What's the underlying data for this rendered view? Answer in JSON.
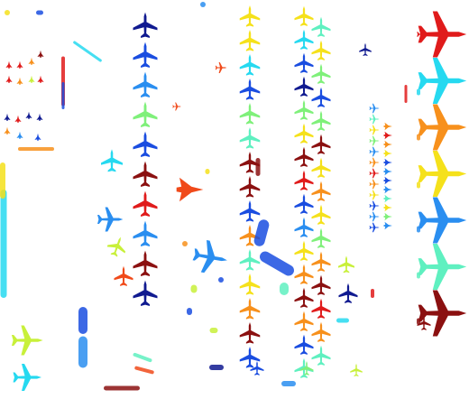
{
  "scene": {
    "kind": "segmentation-mask-visualization",
    "background": "#ffffff",
    "object_icon": "airplane-icon",
    "palette": {
      "dark_red": "#8b1010",
      "red": "#e01b1b",
      "orange_red": "#f04a1a",
      "orange": "#f7901c",
      "yellow": "#f5e11b",
      "yellow_green": "#c8f03a",
      "green": "#7ff07a",
      "mint": "#5ff0c0",
      "cyan": "#26d9f0",
      "sky_blue": "#2a8ef0",
      "blue": "#1a4de0",
      "navy": "#101a90"
    },
    "legend_column_colors": [
      "red",
      "cyan",
      "orange",
      "yellow",
      "sky_blue",
      "mint",
      "dark_red"
    ]
  }
}
